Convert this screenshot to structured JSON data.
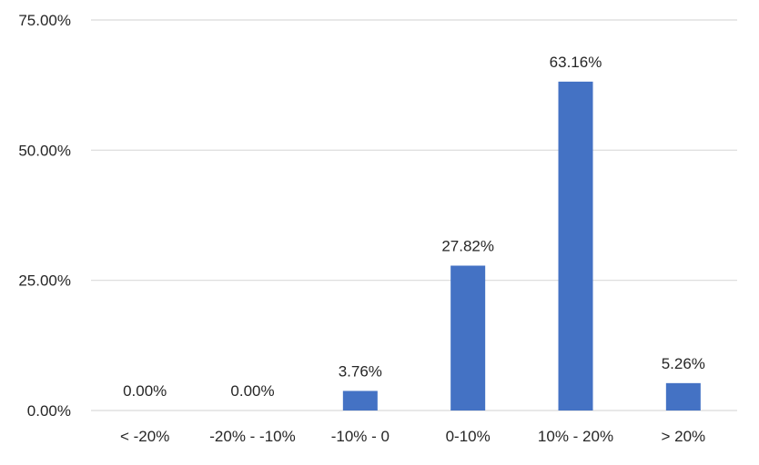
{
  "chart_data": {
    "type": "bar",
    "title": "",
    "xlabel": "",
    "ylabel": "",
    "categories": [
      "< -20%",
      "-20% - -10%",
      "-10% - 0",
      "0-10%",
      "10% - 20%",
      "> 20%"
    ],
    "values": [
      0.0,
      0.0,
      3.76,
      27.82,
      63.16,
      5.26
    ],
    "data_labels": [
      "0.00%",
      "0.00%",
      "3.76%",
      "27.82%",
      "63.16%",
      "5.26%"
    ],
    "ylim": [
      0,
      75
    ],
    "yticks": [
      0,
      25,
      50,
      75
    ],
    "ytick_labels": [
      "0.00%",
      "25.00%",
      "50.00%",
      "75.00%"
    ],
    "grid": true,
    "legend": "none",
    "bar_color": "#4472c4"
  }
}
